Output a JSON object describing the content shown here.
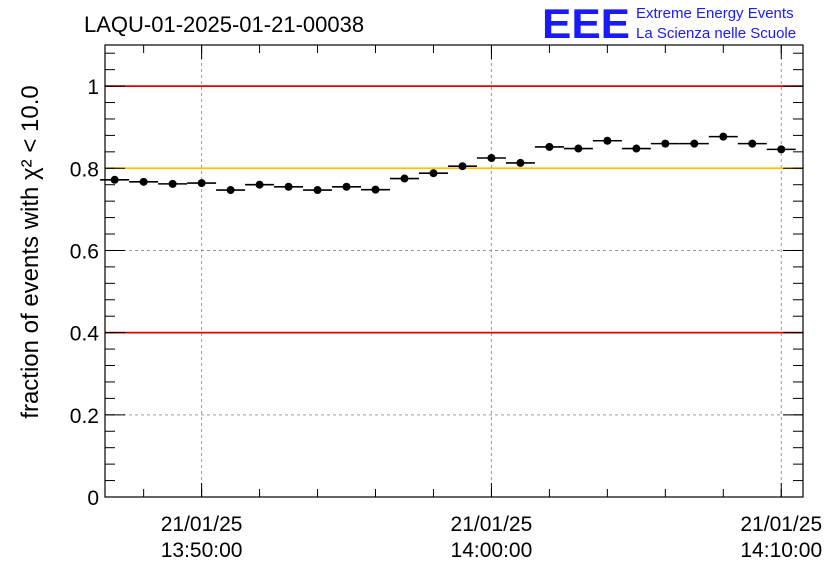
{
  "chart_data": {
    "type": "scatter",
    "title": "LAQU-01-2025-01-21-00038",
    "ylabel": "fraction of events with χ² < 10.0",
    "ylim": [
      0,
      1.1
    ],
    "grid": true,
    "yticks": [
      "0",
      "0.2",
      "0.4",
      "0.6",
      "0.8",
      "1"
    ],
    "xticks": [
      {
        "date": "21/01/25",
        "time": "13:50:00"
      },
      {
        "date": "21/01/25",
        "time": "14:00:00"
      },
      {
        "date": "21/01/25",
        "time": "14:10:00"
      }
    ],
    "xlim": [
      "13:46:40",
      "14:10:45"
    ],
    "bin_width_seconds": 60,
    "reference_lines": [
      {
        "y": 1.0,
        "color": "#e00000"
      },
      {
        "y": 0.8,
        "color": "#ffc000"
      },
      {
        "y": 0.4,
        "color": "#e00000"
      }
    ],
    "series": [
      {
        "x": [
          "13:47:00",
          "13:48:00",
          "13:49:00",
          "13:50:00",
          "13:51:00",
          "13:52:00",
          "13:53:00",
          "13:54:00",
          "13:55:00",
          "13:56:00",
          "13:57:00",
          "13:58:00",
          "13:59:00",
          "14:00:00",
          "14:01:00",
          "14:02:00",
          "14:03:00",
          "14:04:00",
          "14:05:00",
          "14:06:00",
          "14:07:00",
          "14:08:00",
          "14:09:00",
          "14:10:00"
        ],
        "values": [
          0.772,
          0.767,
          0.762,
          0.764,
          0.747,
          0.76,
          0.755,
          0.747,
          0.755,
          0.748,
          0.775,
          0.788,
          0.805,
          0.825,
          0.813,
          0.852,
          0.848,
          0.867,
          0.848,
          0.86,
          0.86,
          0.877,
          0.86,
          0.846
        ]
      }
    ]
  },
  "brand": {
    "logo": "EEE",
    "line1": "Extreme Energy Events",
    "line2": "La Scienza nelle Scuole"
  },
  "colors": {
    "marker": "#000000",
    "grid": "#9a9a9a",
    "brand": "#1a1aff"
  }
}
